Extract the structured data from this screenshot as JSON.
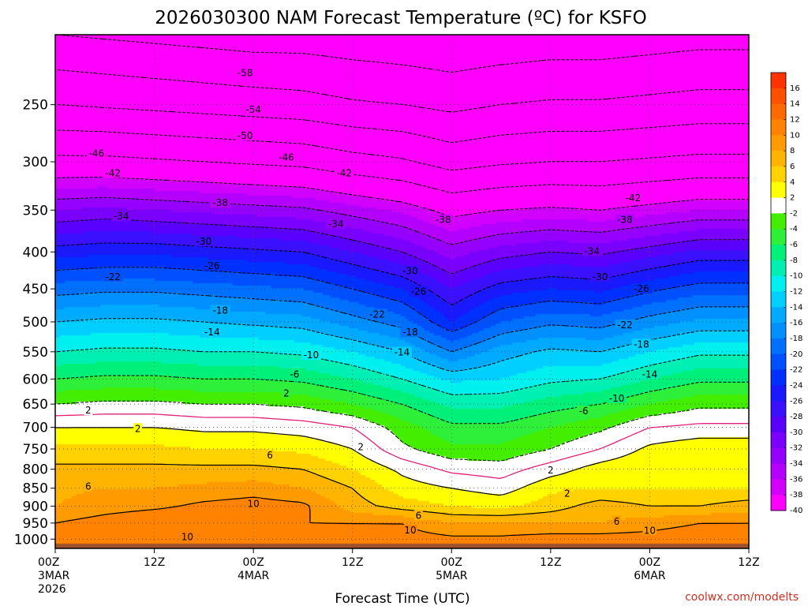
{
  "chart_data": {
    "type": "heatmap",
    "title": "2026030300 NAM Forecast Temperature (ºC) for KSFO",
    "xlabel": "Forecast Time (UTC)",
    "ylabel": "",
    "credit": "coolwx.com/modelts",
    "y_scale": "log",
    "y_inverted": true,
    "ylim": [
      1030,
      200
    ],
    "xlim": [
      0,
      84
    ],
    "y_ticks": [
      250,
      300,
      350,
      400,
      450,
      500,
      550,
      600,
      650,
      700,
      750,
      800,
      850,
      900,
      950,
      1000
    ],
    "x_ticks": [
      {
        "hour": 0,
        "lines": [
          "00Z",
          "3MAR",
          "2026"
        ]
      },
      {
        "hour": 12,
        "lines": [
          "12Z"
        ]
      },
      {
        "hour": 24,
        "lines": [
          "00Z",
          "4MAR"
        ]
      },
      {
        "hour": 36,
        "lines": [
          "12Z"
        ]
      },
      {
        "hour": 48,
        "lines": [
          "00Z",
          "5MAR"
        ]
      },
      {
        "hour": 60,
        "lines": [
          "12Z"
        ]
      },
      {
        "hour": 72,
        "lines": [
          "00Z",
          "6MAR"
        ]
      },
      {
        "hour": 84,
        "lines": [
          "12Z"
        ]
      }
    ],
    "surface_pressure": 1015,
    "colorbar": {
      "labels": [
        "16",
        "14",
        "12",
        "10",
        "8",
        "6",
        "4",
        "2",
        "-2",
        "-4",
        "-6",
        "-8",
        "-10",
        "-12",
        "-14",
        "-16",
        "-18",
        "-20",
        "-22",
        "-24",
        "-26",
        "-28",
        "-30",
        "-32",
        "-34",
        "-36",
        "-38",
        "-40"
      ],
      "colors": [
        "#ff3300",
        "#ff5000",
        "#ff6a00",
        "#ff8200",
        "#ff9a00",
        "#ffb400",
        "#ffd200",
        "#ffff00",
        "#ffffff",
        "#44ee00",
        "#2ef03a",
        "#00f07a",
        "#00f0b4",
        "#00f0f0",
        "#00cfff",
        "#00aaff",
        "#0090ff",
        "#0070ff",
        "#0050ff",
        "#0030ff",
        "#1a18ff",
        "#3a10ff",
        "#5a00ff",
        "#7a00ff",
        "#9600ff",
        "#b400ff",
        "#d200ff",
        "#ff00ff"
      ]
    },
    "hours": [
      0,
      6,
      12,
      18,
      24,
      30,
      36,
      42,
      48,
      54,
      60,
      66,
      72,
      78,
      84
    ],
    "profiles": [
      {
        "p": 1000,
        "t": [
          11.0,
          11.5,
          12.0,
          11.0,
          10.0,
          10.5,
          11.0,
          11.0,
          10.5,
          10.5,
          11.0,
          11.0,
          11.0,
          11.5,
          11.5
        ]
      },
      {
        "p": 950,
        "t": [
          10.0,
          11.0,
          12.0,
          12.0,
          10.0,
          10.0,
          10.0,
          10.0,
          8.0,
          8.0,
          8.0,
          8.0,
          9.0,
          10.0,
          10.0
        ]
      },
      {
        "p": 900,
        "t": [
          8.0,
          9.0,
          9.5,
          10.5,
          11.0,
          10.5,
          7.0,
          5.0,
          4.0,
          3.5,
          5.0,
          7.0,
          6.0,
          6.0,
          7.0
        ]
      },
      {
        "p": 850,
        "t": [
          7.5,
          8.0,
          8.0,
          8.5,
          9.0,
          8.0,
          6.0,
          3.0,
          2.0,
          1.0,
          3.5,
          4.0,
          4.0,
          4.0,
          4.0
        ]
      },
      {
        "p": 800,
        "t": [
          6.5,
          6.5,
          6.5,
          6.5,
          6.5,
          6.0,
          4.0,
          1.5,
          -0.5,
          -1.0,
          1.0,
          3.0,
          4.0,
          4.0,
          4.0
        ]
      },
      {
        "p": 750,
        "t": [
          4.5,
          4.5,
          4.5,
          4.0,
          4.0,
          3.5,
          2.0,
          -1.5,
          -3.5,
          -3.5,
          -2.0,
          0.0,
          2.5,
          3.5,
          3.5
        ]
      },
      {
        "p": 700,
        "t": [
          2.0,
          2.0,
          2.0,
          1.5,
          1.5,
          1.0,
          0.0,
          -3.0,
          -5.5,
          -5.5,
          -4.0,
          -2.5,
          0.0,
          0.5,
          0.5
        ]
      },
      {
        "p": 650,
        "t": [
          -2.0,
          -1.5,
          -1.5,
          -2.0,
          -2.0,
          -2.5,
          -4.0,
          -6.0,
          -8.5,
          -8.5,
          -7.0,
          -6.0,
          -4.0,
          -2.5,
          -2.5
        ]
      },
      {
        "p": 600,
        "t": [
          -6.0,
          -5.5,
          -5.5,
          -6.0,
          -6.0,
          -6.5,
          -8.0,
          -10.0,
          -12.5,
          -12.0,
          -10.5,
          -10.0,
          -8.0,
          -6.5,
          -6.5
        ]
      },
      {
        "p": 550,
        "t": [
          -10.0,
          -9.5,
          -9.5,
          -10.0,
          -10.0,
          -10.5,
          -12.0,
          -14.0,
          -18.0,
          -15.0,
          -13.5,
          -14.0,
          -12.0,
          -10.5,
          -10.5
        ]
      },
      {
        "p": 500,
        "t": [
          -14.0,
          -13.5,
          -13.5,
          -14.0,
          -14.5,
          -15.0,
          -17.0,
          -19.0,
          -24.0,
          -20.0,
          -18.5,
          -19.0,
          -17.0,
          -15.5,
          -15.5
        ]
      },
      {
        "p": 450,
        "t": [
          -19.0,
          -18.5,
          -18.5,
          -19.0,
          -19.5,
          -20.0,
          -22.0,
          -24.0,
          -28.0,
          -25.0,
          -24.0,
          -24.5,
          -22.5,
          -21.0,
          -21.0
        ]
      },
      {
        "p": 400,
        "t": [
          -25.0,
          -24.5,
          -24.5,
          -25.0,
          -25.5,
          -26.0,
          -28.0,
          -30.0,
          -33.0,
          -31.0,
          -30.0,
          -30.5,
          -29.0,
          -27.5,
          -27.5
        ]
      },
      {
        "p": 350,
        "t": [
          -32.0,
          -31.5,
          -32.0,
          -32.5,
          -33.0,
          -33.5,
          -35.0,
          -36.5,
          -39.0,
          -38.0,
          -37.5,
          -38.0,
          -37.0,
          -36.0,
          -36.0
        ]
      },
      {
        "p": 300,
        "t": [
          -41.0,
          -41.0,
          -41.5,
          -42.0,
          -42.5,
          -43.0,
          -44.5,
          -45.5,
          -47.5,
          -46.5,
          -46.0,
          -46.0,
          -45.5,
          -45.0,
          -45.0
        ]
      },
      {
        "p": 250,
        "t": [
          -50.0,
          -50.5,
          -51.0,
          -51.5,
          -52.0,
          -52.5,
          -53.5,
          -54.0,
          -55.0,
          -54.0,
          -53.5,
          -53.5,
          -53.0,
          -52.5,
          -52.5
        ]
      },
      {
        "p": 200,
        "t": [
          -58.0,
          -58.5,
          -59.0,
          -59.5,
          -60.0,
          -60.0,
          -60.5,
          -61.0,
          -61.5,
          -61.0,
          -60.5,
          -60.5,
          -60.0,
          -59.5,
          -59.5
        ]
      }
    ],
    "contour_labels": [
      {
        "text": "-58",
        "hour": 23,
        "p": 226
      },
      {
        "text": "-54",
        "hour": 24,
        "p": 254
      },
      {
        "text": "-50",
        "hour": 23,
        "p": 276
      },
      {
        "text": "-46",
        "hour": 5,
        "p": 292
      },
      {
        "text": "-46",
        "hour": 28,
        "p": 296
      },
      {
        "text": "-42",
        "hour": 7,
        "p": 311
      },
      {
        "text": "-42",
        "hour": 35,
        "p": 311
      },
      {
        "text": "-42",
        "hour": 70,
        "p": 337
      },
      {
        "text": "-38",
        "hour": 20,
        "p": 342
      },
      {
        "text": "-38",
        "hour": 47,
        "p": 361
      },
      {
        "text": "-38",
        "hour": 69,
        "p": 361
      },
      {
        "text": "-34",
        "hour": 8,
        "p": 357
      },
      {
        "text": "-34",
        "hour": 34,
        "p": 366
      },
      {
        "text": "-34",
        "hour": 65,
        "p": 399
      },
      {
        "text": "-30",
        "hour": 18,
        "p": 387
      },
      {
        "text": "-30",
        "hour": 43,
        "p": 425
      },
      {
        "text": "-30",
        "hour": 66,
        "p": 433
      },
      {
        "text": "-26",
        "hour": 19,
        "p": 418
      },
      {
        "text": "-26",
        "hour": 44,
        "p": 454
      },
      {
        "text": "-26",
        "hour": 71,
        "p": 450
      },
      {
        "text": "-22",
        "hour": 7,
        "p": 433
      },
      {
        "text": "-22",
        "hour": 39,
        "p": 488
      },
      {
        "text": "-22",
        "hour": 69,
        "p": 505
      },
      {
        "text": "-18",
        "hour": 20,
        "p": 482
      },
      {
        "text": "-18",
        "hour": 43,
        "p": 517
      },
      {
        "text": "-18",
        "hour": 71,
        "p": 537
      },
      {
        "text": "-14",
        "hour": 19,
        "p": 517
      },
      {
        "text": "-14",
        "hour": 42,
        "p": 551
      },
      {
        "text": "-14",
        "hour": 72,
        "p": 591
      },
      {
        "text": "-10",
        "hour": 31,
        "p": 556
      },
      {
        "text": "-10",
        "hour": 68,
        "p": 638
      },
      {
        "text": "-6",
        "hour": 29,
        "p": 591
      },
      {
        "text": "-6",
        "hour": 64,
        "p": 665
      },
      {
        "text": "2",
        "hour": 4,
        "p": 663
      },
      {
        "text": "2",
        "hour": 28,
        "p": 628
      },
      {
        "text": "2",
        "hour": 10,
        "p": 703
      },
      {
        "text": "2",
        "hour": 37,
        "p": 745
      },
      {
        "text": "2",
        "hour": 60,
        "p": 803
      },
      {
        "text": "2",
        "hour": 62,
        "p": 865
      },
      {
        "text": "6",
        "hour": 26,
        "p": 765
      },
      {
        "text": "6",
        "hour": 4,
        "p": 845
      },
      {
        "text": "6",
        "hour": 44,
        "p": 928
      },
      {
        "text": "6",
        "hour": 68,
        "p": 945
      },
      {
        "text": "10",
        "hour": 24,
        "p": 893
      },
      {
        "text": "10",
        "hour": 43,
        "p": 972
      },
      {
        "text": "10",
        "hour": 72,
        "p": 973
      },
      {
        "text": "10",
        "hour": 16,
        "p": 993
      }
    ]
  }
}
